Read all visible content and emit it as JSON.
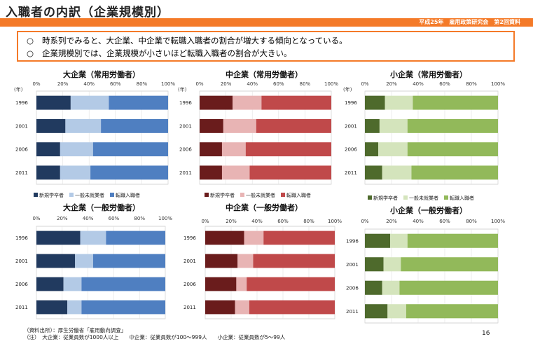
{
  "header": {
    "title": "入職者の内訳（企業規模別）",
    "meeting": "平成25年　雇用政策研究会　第2回資料"
  },
  "summary": {
    "lines": [
      {
        "bullet": "○",
        "text": "時系列でみると、大企業、中企業で転職入職者の割合が増大する傾向となっている。"
      },
      {
        "bullet": "○",
        "text": "企業規模別では、企業規模が小さいほど転職入職者の割合が大きい。"
      }
    ]
  },
  "footer": {
    "source": "（資料出所）：厚生労働省「雇用動向調査」",
    "note": "（注）　大企業：従業員数が1000人以上　　中企業：従業員数が100～999人　　小企業：従業員数が5～99人",
    "page_number": "16"
  },
  "palettes": {
    "large": [
      "#213a5f",
      "#b3cae6",
      "#4f7fc1"
    ],
    "medium": [
      "#6a1c1c",
      "#e8b4b4",
      "#c0494a"
    ],
    "small": [
      "#4e6a2c",
      "#d4e4bc",
      "#92b95a"
    ]
  },
  "chart_data": [
    {
      "type": "bar",
      "orientation": "horizontal",
      "stacked": "percent",
      "palette": "large",
      "title": "大企業（常用労働者）",
      "unit_label": "(年)",
      "categories": [
        "1996",
        "2001",
        "2006",
        "2011"
      ],
      "xlim": [
        0,
        100
      ],
      "ticks": [
        "0%",
        "20%",
        "40%",
        "60%",
        "80%",
        "100%"
      ],
      "legend_position": "bottom",
      "series": [
        {
          "name": "新規学卒者",
          "values": [
            26,
            22,
            18,
            18
          ]
        },
        {
          "name": "一般未就業者",
          "values": [
            29,
            27,
            25,
            23
          ]
        },
        {
          "name": "転職入職者",
          "values": [
            45,
            51,
            57,
            59
          ]
        }
      ]
    },
    {
      "type": "bar",
      "orientation": "horizontal",
      "stacked": "percent",
      "palette": "medium",
      "title": "中企業（常用労働者）",
      "unit_label": "(年)",
      "categories": [
        "1996",
        "2001",
        "2006",
        "2011"
      ],
      "xlim": [
        0,
        100
      ],
      "ticks": [
        "0%",
        "20%",
        "40%",
        "60%",
        "80%",
        "100%"
      ],
      "legend_position": "bottom",
      "series": [
        {
          "name": "新規学卒者",
          "values": [
            25,
            18,
            17,
            17
          ]
        },
        {
          "name": "一般未就業者",
          "values": [
            22,
            25,
            18,
            21
          ]
        },
        {
          "name": "転職入職者",
          "values": [
            53,
            57,
            65,
            62
          ]
        }
      ]
    },
    {
      "type": "bar",
      "orientation": "horizontal",
      "stacked": "percent",
      "palette": "small",
      "title": "小企業（常用労働者）",
      "unit_label": "(年)",
      "categories": [
        "1996",
        "2001",
        "2006",
        "2011"
      ],
      "xlim": [
        0,
        100
      ],
      "ticks": [
        "0%",
        "20%",
        "40%",
        "60%",
        "80%",
        "100%"
      ],
      "legend_position": "bottom",
      "series": [
        {
          "name": "新規学卒者",
          "values": [
            15,
            11,
            10,
            13
          ]
        },
        {
          "name": "一般未就業者",
          "values": [
            21,
            21,
            22,
            22
          ]
        },
        {
          "name": "転職入職者",
          "values": [
            64,
            68,
            68,
            65
          ]
        }
      ]
    },
    {
      "type": "bar",
      "orientation": "horizontal",
      "stacked": "percent",
      "palette": "large",
      "title": "大企業（一般労働者）",
      "categories": [
        "1996",
        "2001",
        "2006",
        "2011"
      ],
      "xlim": [
        0,
        100
      ],
      "ticks": [
        "0%",
        "20%",
        "40%",
        "60%",
        "80%",
        "100%"
      ],
      "series": [
        {
          "values": [
            34,
            30,
            21,
            24
          ]
        },
        {
          "values": [
            20,
            14,
            14,
            11
          ]
        },
        {
          "values": [
            46,
            56,
            65,
            65
          ]
        }
      ]
    },
    {
      "type": "bar",
      "orientation": "horizontal",
      "stacked": "percent",
      "palette": "medium",
      "title": "中企業（一般労働者）",
      "categories": [
        "1996",
        "2001",
        "2006",
        "2011"
      ],
      "xlim": [
        0,
        100
      ],
      "ticks": [
        "0%",
        "20%",
        "40%",
        "60%",
        "80%",
        "100%"
      ],
      "series": [
        {
          "values": [
            30,
            25,
            24,
            23
          ]
        },
        {
          "values": [
            15,
            12,
            8,
            11
          ]
        },
        {
          "values": [
            55,
            63,
            68,
            66
          ]
        }
      ]
    },
    {
      "type": "bar",
      "orientation": "horizontal",
      "stacked": "percent",
      "palette": "small",
      "title": "小企業（一般労働者）",
      "categories": [
        "1996",
        "2001",
        "2006",
        "2011"
      ],
      "xlim": [
        0,
        100
      ],
      "ticks": [
        "0%",
        "20%",
        "40%",
        "60%",
        "80%",
        "100%"
      ],
      "series": [
        {
          "values": [
            19,
            14,
            13,
            17
          ]
        },
        {
          "values": [
            13,
            13,
            13,
            14
          ]
        },
        {
          "values": [
            68,
            73,
            74,
            69
          ]
        }
      ]
    }
  ]
}
